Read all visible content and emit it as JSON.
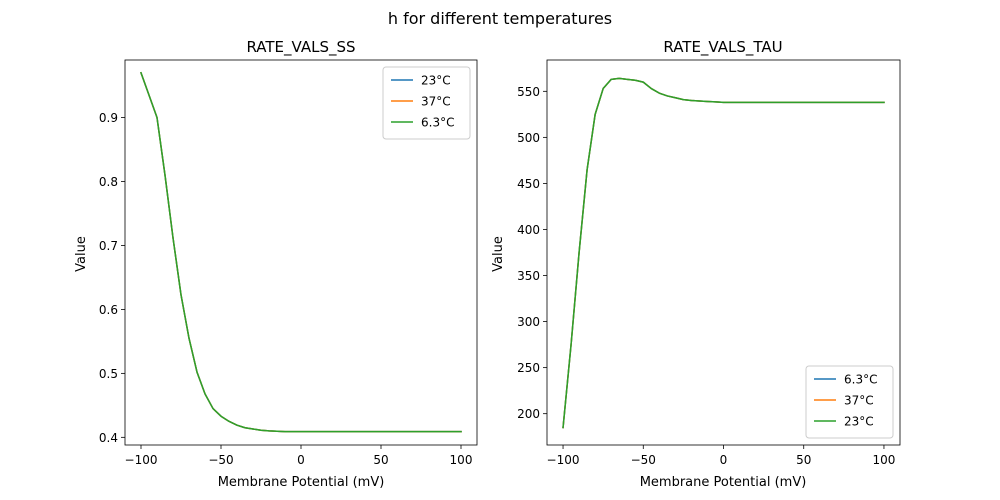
{
  "suptitle": "h for different temperatures",
  "colors": {
    "blue": "#1f77b4",
    "orange": "#ff7f0e",
    "green": "#2ca02c"
  },
  "chart_data": [
    {
      "type": "line",
      "title": "RATE_VALS_SS",
      "xlabel": "Membrane Potential (mV)",
      "ylabel": "Value",
      "xlim": [
        -110,
        110
      ],
      "ylim": [
        0.388,
        0.99
      ],
      "xticks": [
        -100,
        -50,
        0,
        50,
        100
      ],
      "xtick_labels": [
        "−100",
        "−50",
        "0",
        "50",
        "100"
      ],
      "yticks": [
        0.4,
        0.5,
        0.6,
        0.7,
        0.8,
        0.9
      ],
      "ytick_labels": [
        "0.4",
        "0.5",
        "0.6",
        "0.7",
        "0.8",
        "0.9"
      ],
      "legend_position": "top-right",
      "x": [
        -100,
        -95,
        -90,
        -85,
        -80,
        -75,
        -70,
        -65,
        -60,
        -55,
        -50,
        -45,
        -40,
        -35,
        -30,
        -25,
        -20,
        -15,
        -10,
        -5,
        0,
        10,
        20,
        30,
        40,
        50,
        60,
        70,
        80,
        90,
        100
      ],
      "series": [
        {
          "name": "23°C",
          "color": "#1f77b4",
          "values": [
            0.97,
            0.935,
            0.9,
            0.81,
            0.712,
            0.623,
            0.555,
            0.502,
            0.468,
            0.445,
            0.433,
            0.425,
            0.419,
            0.415,
            0.413,
            0.411,
            0.41,
            0.4095,
            0.409,
            0.409,
            0.409,
            0.409,
            0.409,
            0.409,
            0.409,
            0.409,
            0.409,
            0.409,
            0.409,
            0.409,
            0.409
          ]
        },
        {
          "name": "37°C",
          "color": "#ff7f0e",
          "values": [
            0.97,
            0.935,
            0.9,
            0.81,
            0.712,
            0.623,
            0.555,
            0.502,
            0.468,
            0.445,
            0.433,
            0.425,
            0.419,
            0.415,
            0.413,
            0.411,
            0.41,
            0.4095,
            0.409,
            0.409,
            0.409,
            0.409,
            0.409,
            0.409,
            0.409,
            0.409,
            0.409,
            0.409,
            0.409,
            0.409,
            0.409
          ]
        },
        {
          "name": "6.3°C",
          "color": "#2ca02c",
          "values": [
            0.97,
            0.935,
            0.9,
            0.81,
            0.712,
            0.623,
            0.555,
            0.502,
            0.468,
            0.445,
            0.433,
            0.425,
            0.419,
            0.415,
            0.413,
            0.411,
            0.41,
            0.4095,
            0.409,
            0.409,
            0.409,
            0.409,
            0.409,
            0.409,
            0.409,
            0.409,
            0.409,
            0.409,
            0.409,
            0.409,
            0.409
          ]
        }
      ]
    },
    {
      "type": "line",
      "title": "RATE_VALS_TAU",
      "xlabel": "Membrane Potential (mV)",
      "ylabel": "Value",
      "xlim": [
        -110,
        110
      ],
      "ylim": [
        166,
        584
      ],
      "xticks": [
        -100,
        -50,
        0,
        50,
        100
      ],
      "xtick_labels": [
        "−100",
        "−50",
        "0",
        "50",
        "100"
      ],
      "yticks": [
        200,
        250,
        300,
        350,
        400,
        450,
        500,
        550
      ],
      "ytick_labels": [
        "200",
        "250",
        "300",
        "350",
        "400",
        "450",
        "500",
        "550"
      ],
      "legend_position": "bottom-right",
      "x": [
        -100,
        -95,
        -90,
        -85,
        -80,
        -75,
        -70,
        -65,
        -60,
        -55,
        -50,
        -45,
        -40,
        -35,
        -30,
        -25,
        -20,
        -15,
        -10,
        -5,
        0,
        10,
        20,
        30,
        40,
        50,
        60,
        70,
        80,
        90,
        100
      ],
      "series": [
        {
          "name": "6.3°C",
          "color": "#1f77b4",
          "values": [
            185,
            275,
            375,
            465,
            525,
            553,
            563,
            564,
            563,
            562,
            560,
            553,
            548,
            545,
            543,
            541,
            540,
            539.5,
            539,
            538.5,
            538,
            538,
            538,
            538,
            538,
            538,
            538,
            538,
            538,
            538,
            538
          ]
        },
        {
          "name": "37°C",
          "color": "#ff7f0e",
          "values": [
            185,
            275,
            375,
            465,
            525,
            553,
            563,
            564,
            563,
            562,
            560,
            553,
            548,
            545,
            543,
            541,
            540,
            539.5,
            539,
            538.5,
            538,
            538,
            538,
            538,
            538,
            538,
            538,
            538,
            538,
            538,
            538
          ]
        },
        {
          "name": "23°C",
          "color": "#2ca02c",
          "values": [
            185,
            275,
            375,
            465,
            525,
            553,
            563,
            564,
            563,
            562,
            560,
            553,
            548,
            545,
            543,
            541,
            540,
            539.5,
            539,
            538.5,
            538,
            538,
            538,
            538,
            538,
            538,
            538,
            538,
            538,
            538,
            538
          ]
        }
      ]
    }
  ]
}
